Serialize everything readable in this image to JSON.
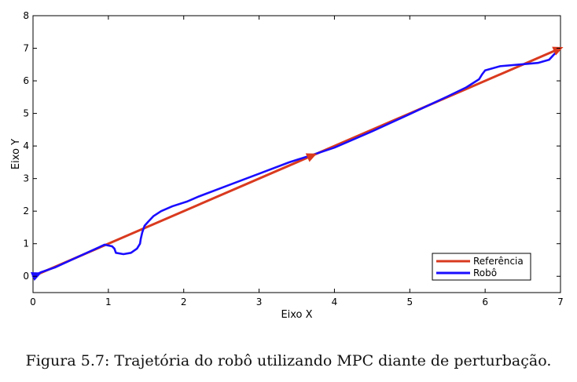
{
  "chart_data": {
    "type": "line",
    "title": "",
    "xlabel": "Eixo X",
    "ylabel": "Eixo Y",
    "xlim": [
      0,
      7
    ],
    "ylim": [
      -0.5,
      8
    ],
    "xticks": [
      "0",
      "1",
      "2",
      "3",
      "4",
      "5",
      "6",
      "7"
    ],
    "yticks": [
      "0",
      "1",
      "2",
      "3",
      "4",
      "5",
      "6",
      "7",
      "8"
    ],
    "grid": false,
    "legend_position": "bottom-right",
    "series": [
      {
        "name": "Referência",
        "color": "#d93a1f",
        "x": [
          0,
          7
        ],
        "y": [
          0,
          7
        ],
        "markers": [
          {
            "x": 0.05,
            "y": 0.05
          },
          {
            "x": 3.7,
            "y": 3.7
          },
          {
            "x": 6.97,
            "y": 6.97
          }
        ]
      },
      {
        "name": "Robô",
        "color": "#1a0dff",
        "x": [
          0,
          0.1,
          0.3,
          0.6,
          0.95,
          1.05,
          1.08,
          1.1,
          1.2,
          1.3,
          1.38,
          1.42,
          1.43,
          1.45,
          1.48,
          1.53,
          1.6,
          1.7,
          1.85,
          2.05,
          2.2,
          2.6,
          3.0,
          3.4,
          3.7,
          4.0,
          4.5,
          5.0,
          5.5,
          5.75,
          5.92,
          5.96,
          6.0,
          6.2,
          6.45,
          6.7,
          6.85,
          6.93,
          6.97
        ],
        "y": [
          0,
          0.12,
          0.28,
          0.6,
          0.97,
          0.92,
          0.85,
          0.72,
          0.68,
          0.72,
          0.85,
          1.0,
          1.15,
          1.35,
          1.55,
          1.68,
          1.85,
          2.0,
          2.15,
          2.3,
          2.45,
          2.8,
          3.15,
          3.5,
          3.72,
          3.95,
          4.45,
          4.98,
          5.52,
          5.8,
          6.05,
          6.2,
          6.32,
          6.45,
          6.5,
          6.55,
          6.65,
          6.85,
          6.97
        ]
      }
    ],
    "caption": "Figura 5.7: Trajetória do robô utilizando MPC diante de perturbação."
  }
}
